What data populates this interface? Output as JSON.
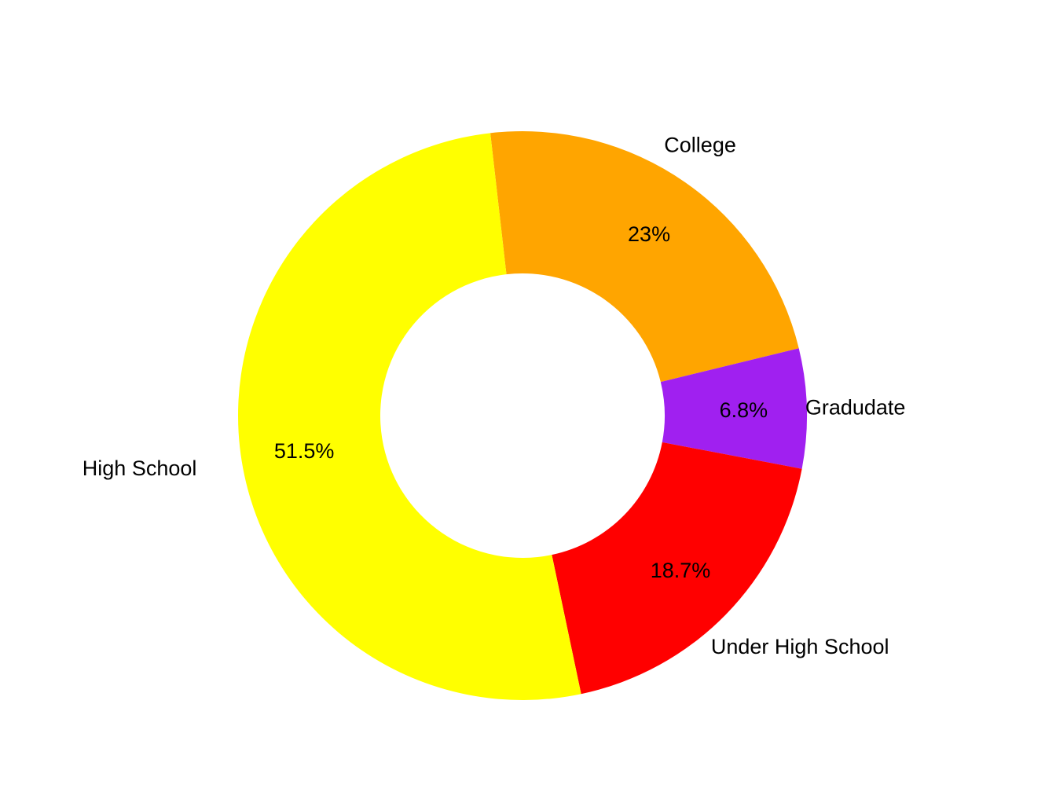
{
  "chart_data": {
    "type": "pie",
    "subtype": "donut",
    "slices": [
      {
        "label": "College",
        "value": 23.0,
        "value_label": "23%",
        "color": "#FFA500"
      },
      {
        "label": "Gradudate",
        "value": 6.8,
        "value_label": "6.8%",
        "color": "#A020F0"
      },
      {
        "label": "Under High School",
        "value": 18.7,
        "value_label": "18.7%",
        "color": "#FF0000"
      },
      {
        "label": "High School",
        "value": 51.5,
        "value_label": "51.5%",
        "color": "#FFFF00"
      }
    ],
    "legend": "none",
    "grid": false
  }
}
